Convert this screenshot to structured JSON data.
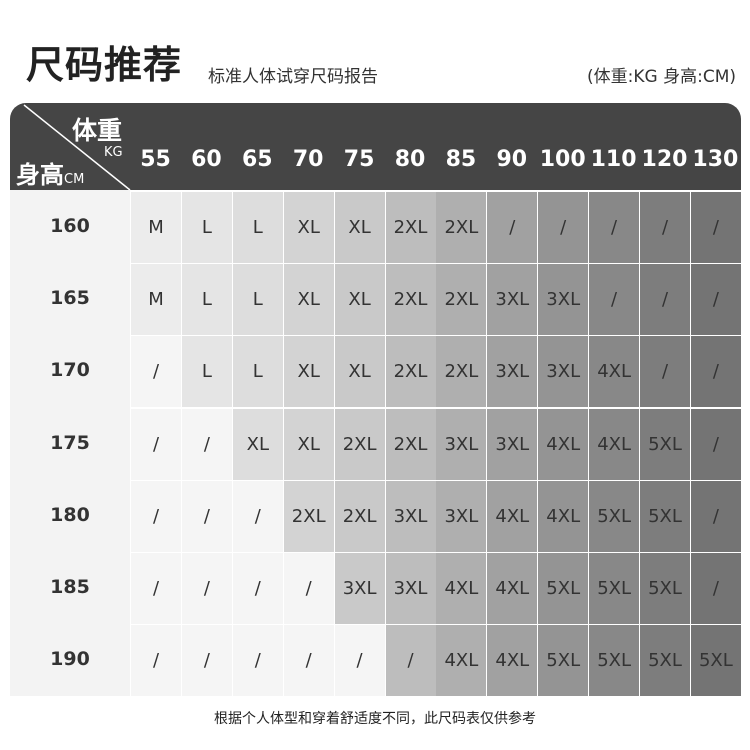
{
  "title": "尺码推荐",
  "subtitle": "标准人体试穿尺码报告",
  "units": "(体重:KG 身高:CM)",
  "corner": {
    "weight_label": "体重",
    "weight_unit": "KG",
    "height_label": "身高",
    "height_unit": "CM"
  },
  "weights": [
    "55",
    "60",
    "65",
    "70",
    "75",
    "80",
    "85",
    "90",
    "100",
    "110",
    "120",
    "130"
  ],
  "rows": [
    {
      "height": "160",
      "sizes": [
        "M",
        "L",
        "L",
        "XL",
        "XL",
        "2XL",
        "2XL",
        "/",
        "/",
        "/",
        "/",
        "/"
      ]
    },
    {
      "height": "165",
      "sizes": [
        "M",
        "L",
        "L",
        "XL",
        "XL",
        "2XL",
        "2XL",
        "3XL",
        "3XL",
        "/",
        "/",
        "/"
      ]
    },
    {
      "height": "170",
      "sizes": [
        "/",
        "L",
        "L",
        "XL",
        "XL",
        "2XL",
        "2XL",
        "3XL",
        "3XL",
        "4XL",
        "/",
        "/"
      ]
    },
    {
      "height": "175",
      "sizes": [
        "/",
        "/",
        "XL",
        "XL",
        "2XL",
        "2XL",
        "3XL",
        "3XL",
        "4XL",
        "4XL",
        "5XL",
        "/"
      ]
    },
    {
      "height": "180",
      "sizes": [
        "/",
        "/",
        "/",
        "2XL",
        "2XL",
        "3XL",
        "3XL",
        "4XL",
        "4XL",
        "5XL",
        "5XL",
        "/"
      ]
    },
    {
      "height": "185",
      "sizes": [
        "/",
        "/",
        "/",
        "/",
        "3XL",
        "3XL",
        "4XL",
        "4XL",
        "5XL",
        "5XL",
        "5XL",
        "/"
      ]
    },
    {
      "height": "190",
      "sizes": [
        "/",
        "/",
        "/",
        "/",
        "/",
        "/",
        "4XL",
        "4XL",
        "5XL",
        "5XL",
        "5XL",
        "5XL"
      ]
    }
  ],
  "column_colors": [
    "#ececec",
    "#e5e5e5",
    "#dddddd",
    "#d3d3d3",
    "#c9c9c9",
    "#bdbdbd",
    "#afafaf",
    "#a1a1a1",
    "#949494",
    "#888888",
    "#7d7d7d",
    "#747474"
  ],
  "empty_cell_color": "#f5f5f5",
  "header_color": "#454545",
  "footer": "根据个人体型和穿着舒适度不同，此尺码表仅供参考"
}
